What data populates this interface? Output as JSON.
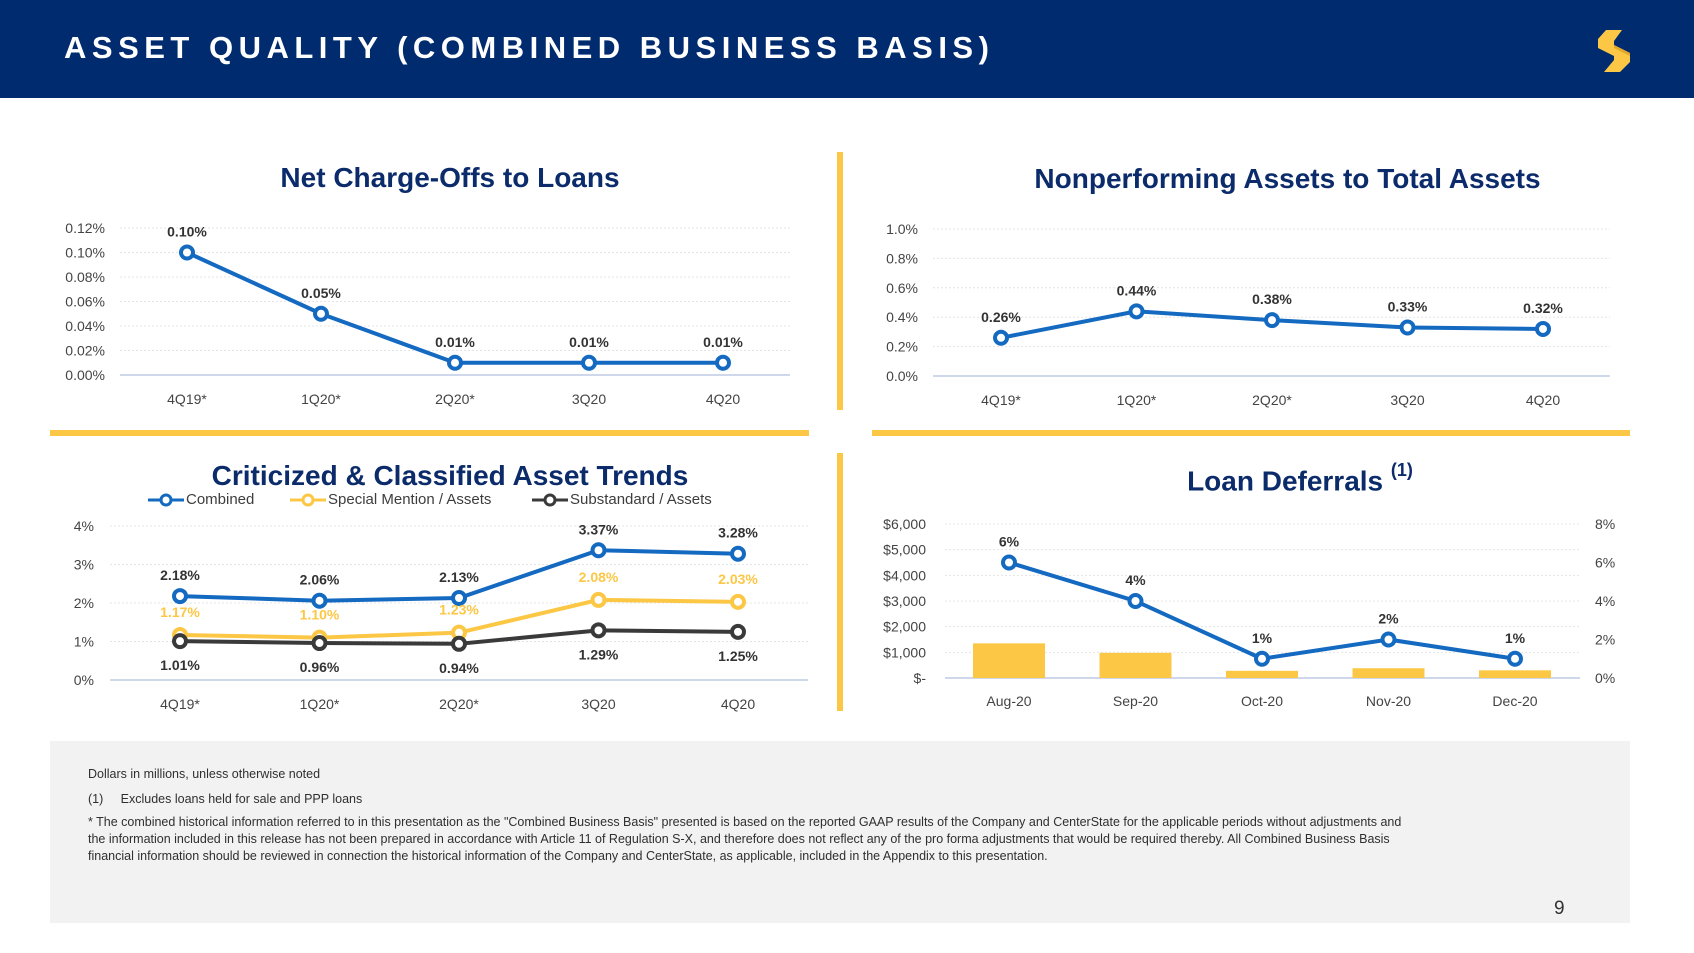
{
  "header": {
    "title": "ASSET QUALITY (COMBINED BUSINESS BASIS)"
  },
  "colors": {
    "navy": "#002b6e",
    "blue": "#1469c0",
    "gold": "#fcc745",
    "dark": "#3a3a3a",
    "title": "#0b2b6b"
  },
  "chart_data": [
    {
      "type": "line",
      "title": "Net Charge-Offs to Loans",
      "categories": [
        "4Q19*",
        "1Q20*",
        "2Q20*",
        "3Q20",
        "4Q20"
      ],
      "yticks": [
        "0.12%",
        "0.10%",
        "0.08%",
        "0.06%",
        "0.04%",
        "0.02%",
        "0.00%"
      ],
      "ylim": [
        0,
        0.12
      ],
      "series": [
        {
          "values": [
            0.1,
            0.05,
            0.01,
            0.01,
            0.01
          ],
          "labels": [
            "0.10%",
            "0.05%",
            "0.01%",
            "0.01%",
            "0.01%"
          ]
        }
      ]
    },
    {
      "type": "line",
      "title": "Nonperforming Assets to Total Assets",
      "categories": [
        "4Q19*",
        "1Q20*",
        "2Q20*",
        "3Q20",
        "4Q20"
      ],
      "yticks": [
        "1.0%",
        "0.8%",
        "0.6%",
        "0.4%",
        "0.2%",
        "0.0%"
      ],
      "ylim": [
        0,
        1.0
      ],
      "series": [
        {
          "values": [
            0.26,
            0.44,
            0.38,
            0.33,
            0.32
          ],
          "labels": [
            "0.26%",
            "0.44%",
            "0.38%",
            "0.33%",
            "0.32%"
          ]
        }
      ]
    },
    {
      "type": "line",
      "title": "Criticized & Classified Asset Trends",
      "categories": [
        "4Q19*",
        "1Q20*",
        "2Q20*",
        "3Q20",
        "4Q20"
      ],
      "yticks": [
        "4%",
        "3%",
        "2%",
        "1%",
        "0%"
      ],
      "ylim": [
        0,
        4
      ],
      "series": [
        {
          "name": "Combined",
          "values": [
            2.18,
            2.06,
            2.13,
            3.37,
            3.28
          ],
          "labels": [
            "2.18%",
            "2.06%",
            "2.13%",
            "3.37%",
            "3.28%"
          ]
        },
        {
          "name": "Special Mention / Assets",
          "values": [
            1.17,
            1.1,
            1.23,
            2.08,
            2.03
          ],
          "labels": [
            "1.17%",
            "1.10%",
            "1.23%",
            "2.08%",
            "2.03%"
          ]
        },
        {
          "name": "Substandard / Assets",
          "values": [
            1.01,
            0.96,
            0.94,
            1.29,
            1.25
          ],
          "labels": [
            "1.01%",
            "0.96%",
            "0.94%",
            "1.29%",
            "1.25%"
          ]
        }
      ]
    },
    {
      "type": "bar+line",
      "title": "Loan Deferrals",
      "title_sup": "(1)",
      "categories": [
        "Aug-20",
        "Sep-20",
        "Oct-20",
        "Nov-20",
        "Dec-20"
      ],
      "yticks_left": [
        "$6,000",
        "$5,000",
        "$4,000",
        "$3,000",
        "$2,000",
        "$1,000",
        "$-"
      ],
      "yticks_right": [
        "8%",
        "6%",
        "4%",
        "2%",
        "0%"
      ],
      "ylim_left": [
        0,
        6000
      ],
      "ylim_right": [
        0,
        8
      ],
      "bars": [
        1350,
        980,
        280,
        380,
        300
      ],
      "series": [
        {
          "values": [
            6,
            4,
            1,
            2,
            1
          ],
          "labels": [
            "6%",
            "4%",
            "1%",
            "2%",
            "1%"
          ]
        }
      ]
    }
  ],
  "footnotes": {
    "line1": "Dollars in millions, unless otherwise noted",
    "line2": "(1)     Excludes loans held for sale and PPP loans",
    "line3a": "*   The combined historical information referred to in this presentation as the \"Combined Business Basis\" presented is based on the reported GAAP results of the Company and CenterState for the applicable periods without adjustments and",
    "line3b": "the information included in this release has not been prepared in accordance with Article 11 of Regulation S-X, and therefore does not reflect any of the pro forma adjustments that would be required thereby.  All Combined Business Basis",
    "line3c": "financial information should be reviewed in connection the historical information of the Company and CenterState, as applicable, included in the Appendix to this presentation."
  },
  "page_number": "9"
}
